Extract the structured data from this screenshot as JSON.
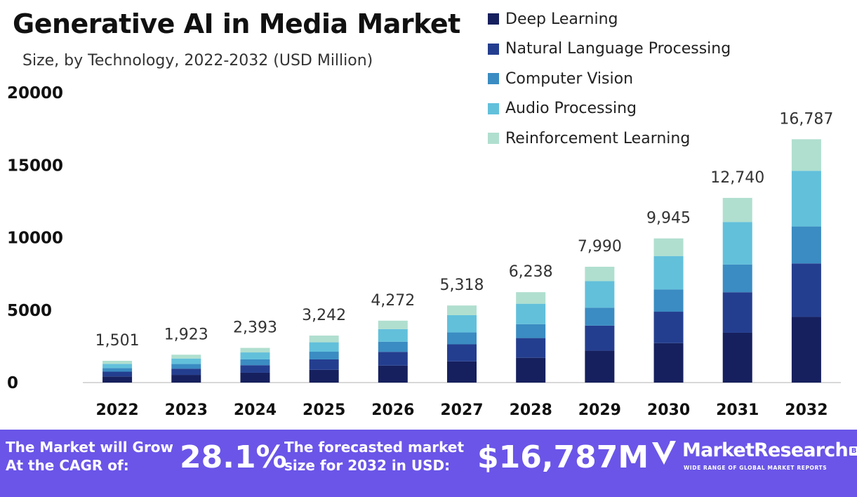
{
  "header": {
    "title": "Generative AI in Media Market",
    "subtitle": "Size, by Technology, 2022-2032 (USD Million)"
  },
  "legend": [
    {
      "label": "Deep Learning",
      "color": "#16205e"
    },
    {
      "label": "Natural Language Processing",
      "color": "#243e8f"
    },
    {
      "label": "Computer Vision",
      "color": "#3a8cc2"
    },
    {
      "label": "Audio Processing",
      "color": "#62c0db"
    },
    {
      "label": "Reinforcement Learning",
      "color": "#b0dfcf"
    }
  ],
  "chart_data": {
    "type": "bar",
    "stacked": true,
    "title": "Generative AI in Media Market",
    "subtitle": "Size, by Technology, 2022-2032 (USD Million)",
    "xlabel": "",
    "ylabel": "",
    "ylim": [
      0,
      20000
    ],
    "yticks": [
      0,
      5000,
      10000,
      15000,
      20000
    ],
    "grid": false,
    "legend_position": "top-right",
    "categories": [
      "2022",
      "2023",
      "2024",
      "2025",
      "2026",
      "2027",
      "2028",
      "2029",
      "2030",
      "2031",
      "2032"
    ],
    "totals": [
      1501,
      1923,
      2393,
      3242,
      4272,
      5318,
      6238,
      7990,
      9945,
      12740,
      16787
    ],
    "total_labels": [
      "1,501",
      "1,923",
      "2,393",
      "3,242",
      "4,272",
      "5,318",
      "6,238",
      "7,990",
      "9,945",
      "12,740",
      "16,787"
    ],
    "series": [
      {
        "name": "Deep Learning",
        "values": [
          420,
          530,
          680,
          880,
          1170,
          1460,
          1710,
          2200,
          2720,
          3440,
          4530
        ]
      },
      {
        "name": "Natural Language Processing",
        "values": [
          330,
          430,
          520,
          720,
          950,
          1180,
          1360,
          1730,
          2170,
          2790,
          3690
        ]
      },
      {
        "name": "Computer Vision",
        "values": [
          250,
          320,
          400,
          530,
          700,
          820,
          960,
          1240,
          1540,
          1920,
          2550
        ]
      },
      {
        "name": "Audio Processing",
        "values": [
          290,
          380,
          480,
          650,
          870,
          1190,
          1410,
          1830,
          2300,
          2930,
          3840
        ]
      },
      {
        "name": "Reinforcement Learning",
        "values": [
          211,
          263,
          313,
          462,
          582,
          668,
          798,
          990,
          1215,
          1660,
          2177
        ]
      }
    ]
  },
  "footer": {
    "cagr_label_line1": "The Market will Grow",
    "cagr_label_line2": "At the CAGR of:",
    "cagr_value": "28.1%",
    "forecast_label_line1": "The forecasted market",
    "forecast_label_line2": "size for 2032 in USD:",
    "forecast_value": "$16,787M",
    "brand_name": "MarketResearch",
    "brand_suffix": "BIZ",
    "brand_tagline": "WIDE RANGE OF GLOBAL MARKET REPORTS"
  }
}
